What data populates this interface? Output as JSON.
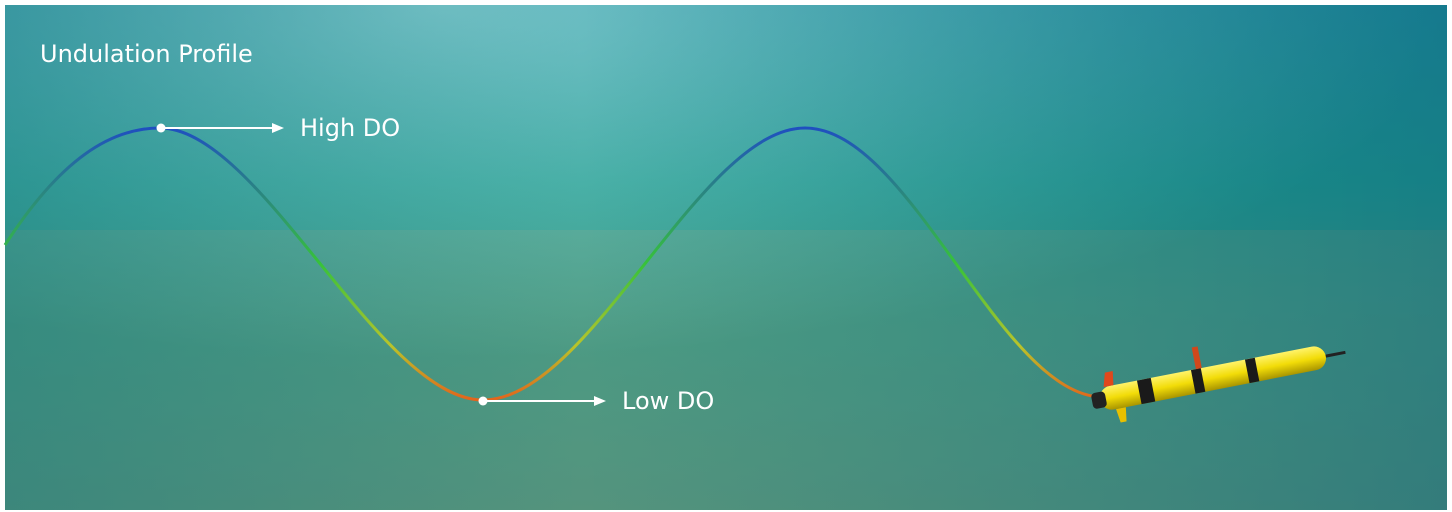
{
  "header": {
    "title": "Undulation Profile"
  },
  "annotations": {
    "high": "High DO",
    "low": "Low DO"
  }
}
